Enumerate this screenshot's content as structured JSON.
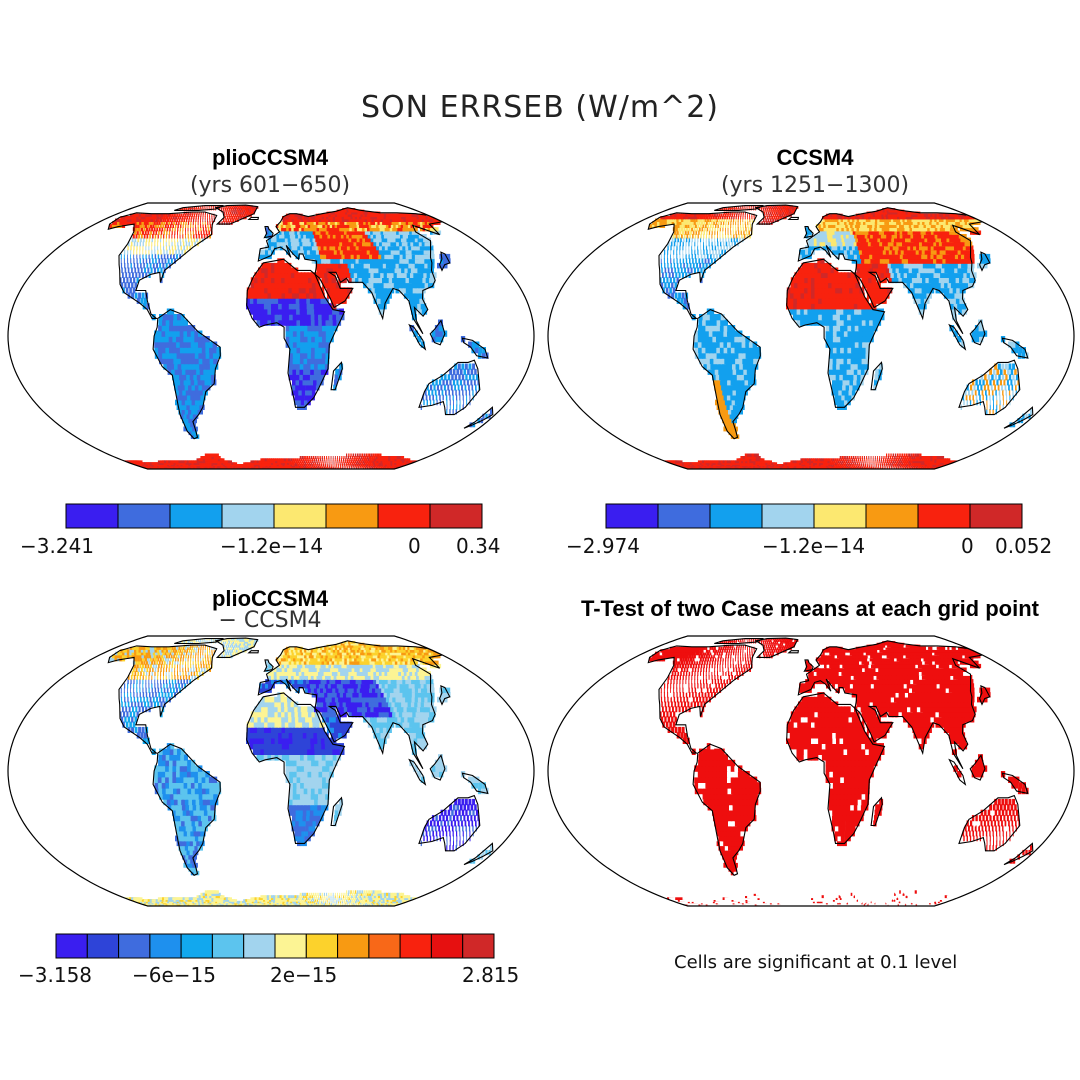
{
  "title": "SON ERRSEB (W/m^2)",
  "panels": [
    {
      "title": "plioCCSM4",
      "subtitle": "(yrs 601-650)",
      "scheme": "p1",
      "colorbar": {
        "min": "-3.241",
        "mid": "-1.2e-14",
        "zero": "0",
        "max": "0.34"
      }
    },
    {
      "title": "CCSM4",
      "subtitle": "(yrs 1251-1300)",
      "scheme": "p2",
      "colorbar": {
        "min": "-2.974",
        "mid": "-1.2e-14",
        "zero": "0",
        "max": "0.052"
      }
    },
    {
      "title": "plioCCSM4",
      "subtitle": "- CCSM4",
      "scheme": "p3",
      "colorbar": {
        "a": "-3.158",
        "b": "-6e-15",
        "c": "2e-15",
        "d": "2.815"
      }
    },
    {
      "title": "T-Test of two Case means at each grid point",
      "subtitle": "",
      "scheme": "ttest"
    }
  ],
  "colors": {
    "cb8": [
      "#3a1ef0",
      "#3f6cde",
      "#12a0ee",
      "#a2d4ee",
      "#fce870",
      "#f89a12",
      "#f8220e",
      "#d02828"
    ],
    "cb13": [
      "#3a1ef0",
      "#2e44d8",
      "#3f6cde",
      "#1e90ee",
      "#12a8ee",
      "#5cc4ee",
      "#a2d4ee",
      "#fcf494",
      "#fcd22c",
      "#f89a12",
      "#f86818",
      "#f8220e",
      "#e61010",
      "#d02828"
    ],
    "ocean": "#ffffff",
    "ttest_sig": "#ee0e0e"
  },
  "note": "Cells are significant at 0.1 level"
}
